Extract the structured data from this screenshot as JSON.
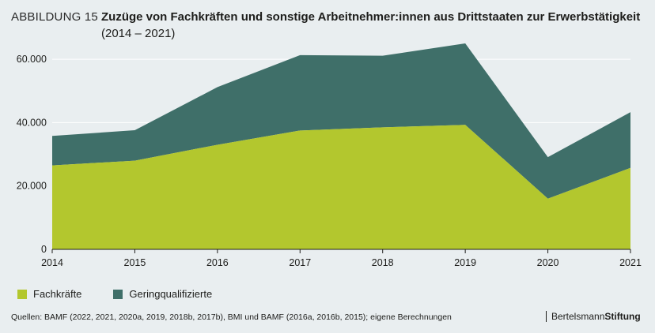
{
  "figure_label": "ABBILDUNG 15",
  "title": "Zuzüge von Fachkräften und sonstige Arbeitnehmer:innen aus Drittstaaten zur Erwerbstätigkeit",
  "subtitle": "(2014 – 2021)",
  "source": "Quellen: BAMF (2022, 2021, 2020a, 2019, 2018b, 2017b), BMI und BAMF (2016a, 2016b, 2015); eigene Berechnungen",
  "brand": {
    "part1": "Bertelsmann",
    "part2": "Stiftung"
  },
  "colors": {
    "fachkraefte": "#b3c72e",
    "gering": "#3f6f69",
    "background": "#e9eef0",
    "grid": "#ffffff"
  },
  "chart_data": {
    "type": "area",
    "stacked": true,
    "x": [
      "2014",
      "2015",
      "2016",
      "2017",
      "2018",
      "2019",
      "2020",
      "2021"
    ],
    "series": [
      {
        "name": "Fachkräfte",
        "values": [
          26500,
          28000,
          33000,
          37500,
          38500,
          39300,
          16000,
          25700
        ]
      },
      {
        "name": "Geringqualifizierte",
        "values": [
          9300,
          9600,
          18200,
          23800,
          22600,
          25700,
          13100,
          17600
        ]
      }
    ],
    "ylim": [
      0,
      65000
    ],
    "yticks": [
      0,
      20000,
      40000,
      60000
    ],
    "ytick_labels": [
      "0",
      "20.000",
      "40.000",
      "60.000"
    ],
    "grid": true,
    "legend_position": "bottom-left"
  }
}
